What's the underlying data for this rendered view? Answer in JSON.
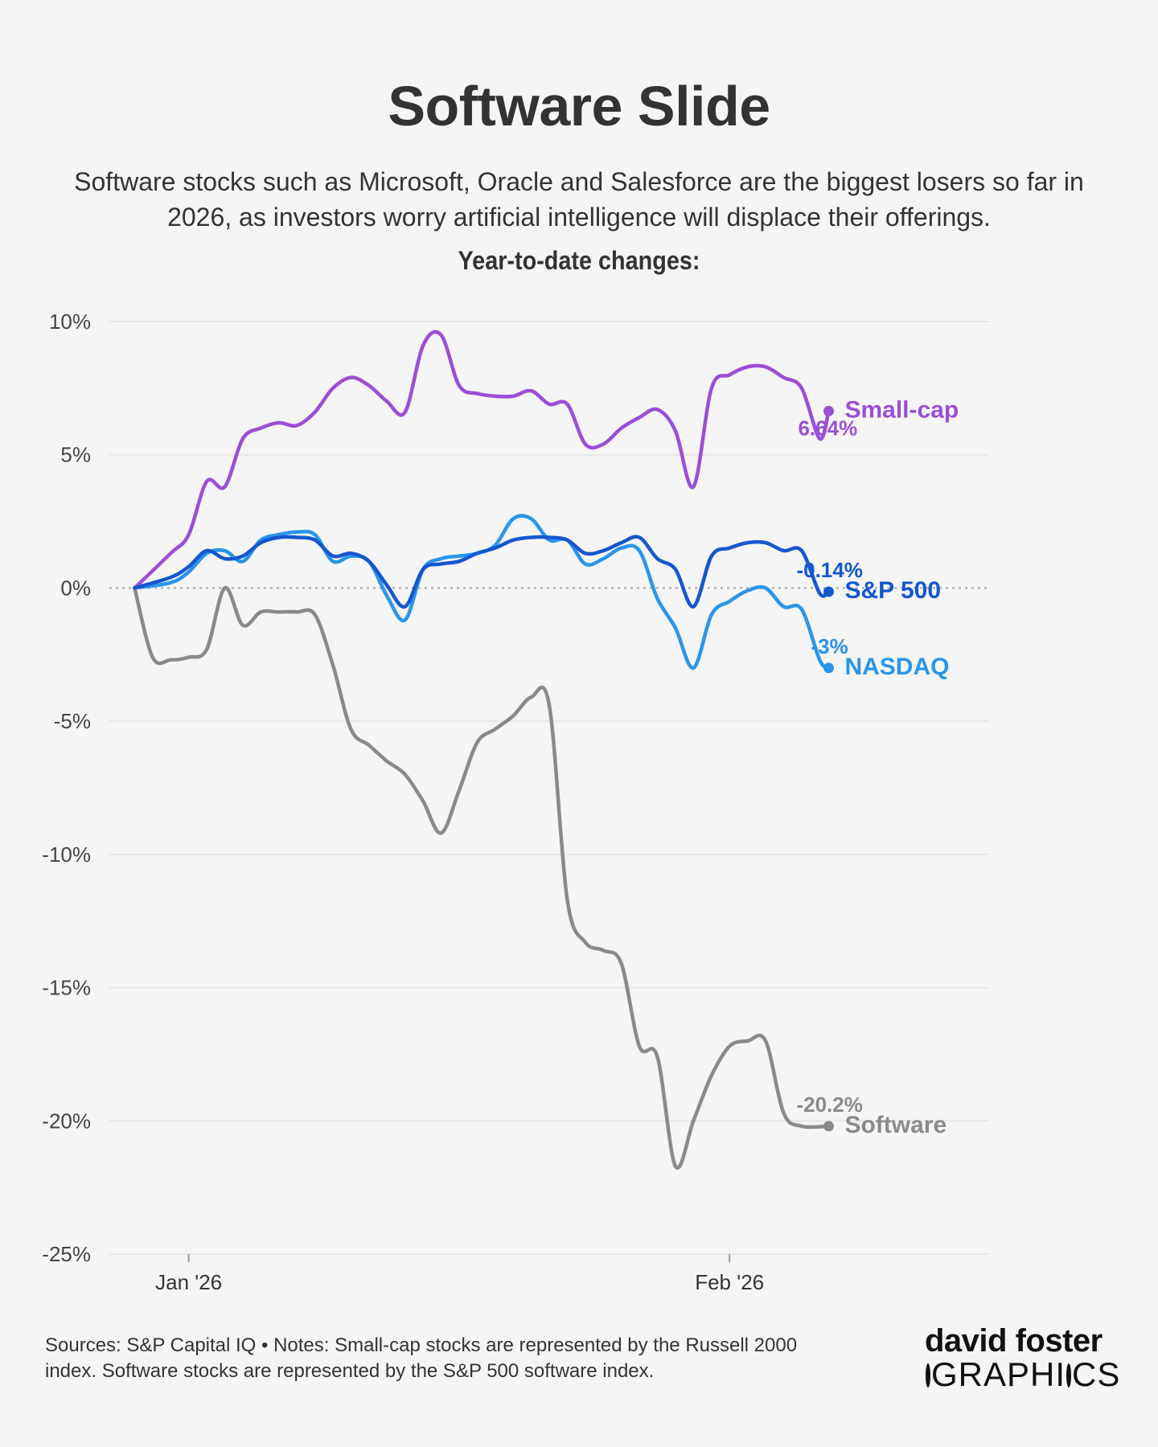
{
  "header": {
    "title": "Software Slide",
    "subtitle": "Software stocks such as Microsoft, Oracle and Salesforce are the biggest losers so far in 2026, as investors worry artificial intelligence will displace their offerings.",
    "chart_heading": "Year-to-date changes:"
  },
  "footer": {
    "sources": "Sources: S&P Capital IQ • Notes: Small-cap stocks are represented by the Russell 2000 index. Software stocks are represented by the S&P 500 software index.",
    "logo_top": "david foster",
    "logo_bottom_a": "GRAPH",
    "logo_bottom_b": "I",
    "logo_bottom_c": "CS"
  },
  "chart_data": {
    "type": "line",
    "title": "Year-to-date changes:",
    "xlabel": "",
    "ylabel": "",
    "xticks": [
      {
        "label": "Jan '26",
        "x": 3
      },
      {
        "label": "Feb '26",
        "x": 33
      }
    ],
    "xlim": [
      -1.4,
      47.4
    ],
    "ylim": [
      -25,
      10
    ],
    "yticks": [
      10,
      5,
      0,
      -5,
      -10,
      -15,
      -20,
      -25
    ],
    "ytick_labels": [
      "10%",
      "5%",
      "0%",
      "-5%",
      "-10%",
      "-15%",
      "-20%",
      "-25%"
    ],
    "grid": true,
    "zero_line": "dotted",
    "legend": "end-labels",
    "series": [
      {
        "name": "Small-cap",
        "end_label": "6.64%",
        "color": "#9a4fd6",
        "points": [
          [
            0,
            0
          ],
          [
            2,
            1.3
          ],
          [
            3,
            2.0
          ],
          [
            4,
            4.0
          ],
          [
            5,
            3.8
          ],
          [
            6,
            5.6
          ],
          [
            7,
            6.0
          ],
          [
            8,
            6.2
          ],
          [
            9,
            6.1
          ],
          [
            10,
            6.6
          ],
          [
            11,
            7.5
          ],
          [
            12,
            7.9
          ],
          [
            13,
            7.6
          ],
          [
            14,
            7.0
          ],
          [
            15,
            6.6
          ],
          [
            16,
            9.1
          ],
          [
            17,
            9.5
          ],
          [
            18,
            7.6
          ],
          [
            19,
            7.3
          ],
          [
            20,
            7.2
          ],
          [
            21,
            7.2
          ],
          [
            22,
            7.4
          ],
          [
            23,
            6.9
          ],
          [
            24,
            6.9
          ],
          [
            25,
            5.4
          ],
          [
            26,
            5.4
          ],
          [
            27,
            6.0
          ],
          [
            28,
            6.4
          ],
          [
            29,
            6.7
          ],
          [
            30,
            5.9
          ],
          [
            31,
            3.8
          ],
          [
            32,
            7.5
          ],
          [
            33,
            8.0
          ],
          [
            34,
            8.3
          ],
          [
            35,
            8.3
          ],
          [
            36,
            7.9
          ],
          [
            37,
            7.5
          ],
          [
            38,
            5.6
          ],
          [
            38.5,
            6.64
          ]
        ]
      },
      {
        "name": "S&P 500",
        "end_label": "-0.14%",
        "color": "#1457cf",
        "points": [
          [
            0,
            0
          ],
          [
            2,
            0.4
          ],
          [
            3,
            0.8
          ],
          [
            4,
            1.4
          ],
          [
            5,
            1.1
          ],
          [
            6,
            1.2
          ],
          [
            7,
            1.7
          ],
          [
            8,
            1.9
          ],
          [
            9,
            1.9
          ],
          [
            10,
            1.8
          ],
          [
            11,
            1.2
          ],
          [
            12,
            1.3
          ],
          [
            13,
            1.0
          ],
          [
            14,
            0.1
          ],
          [
            15,
            -0.7
          ],
          [
            16,
            0.7
          ],
          [
            17,
            0.9
          ],
          [
            18,
            1.0
          ],
          [
            19,
            1.3
          ],
          [
            20,
            1.5
          ],
          [
            21,
            1.8
          ],
          [
            22,
            1.9
          ],
          [
            23,
            1.9
          ],
          [
            24,
            1.8
          ],
          [
            25,
            1.3
          ],
          [
            26,
            1.4
          ],
          [
            27,
            1.7
          ],
          [
            28,
            1.9
          ],
          [
            29,
            1.1
          ],
          [
            30,
            0.7
          ],
          [
            31,
            -0.7
          ],
          [
            32,
            1.2
          ],
          [
            33,
            1.5
          ],
          [
            34,
            1.7
          ],
          [
            35,
            1.7
          ],
          [
            36,
            1.4
          ],
          [
            37,
            1.4
          ],
          [
            38,
            -0.2
          ],
          [
            38.5,
            -0.14
          ]
        ]
      },
      {
        "name": "NASDAQ",
        "end_label": "-3%",
        "color": "#2a95ea",
        "points": [
          [
            0,
            0
          ],
          [
            2,
            0.2
          ],
          [
            3,
            0.6
          ],
          [
            4,
            1.3
          ],
          [
            5,
            1.4
          ],
          [
            6,
            1.0
          ],
          [
            7,
            1.8
          ],
          [
            8,
            2.0
          ],
          [
            9,
            2.1
          ],
          [
            10,
            2.0
          ],
          [
            11,
            1.0
          ],
          [
            12,
            1.2
          ],
          [
            13,
            1.0
          ],
          [
            14,
            -0.3
          ],
          [
            15,
            -1.2
          ],
          [
            16,
            0.7
          ],
          [
            17,
            1.1
          ],
          [
            18,
            1.2
          ],
          [
            19,
            1.3
          ],
          [
            20,
            1.6
          ],
          [
            21,
            2.6
          ],
          [
            22,
            2.6
          ],
          [
            23,
            1.8
          ],
          [
            24,
            1.8
          ],
          [
            25,
            0.9
          ],
          [
            26,
            1.1
          ],
          [
            27,
            1.5
          ],
          [
            28,
            1.4
          ],
          [
            29,
            -0.4
          ],
          [
            30,
            -1.5
          ],
          [
            31,
            -3.0
          ],
          [
            32,
            -1.0
          ],
          [
            33,
            -0.5
          ],
          [
            34,
            -0.1
          ],
          [
            35,
            0.0
          ],
          [
            36,
            -0.7
          ],
          [
            37,
            -0.8
          ],
          [
            38,
            -2.7
          ],
          [
            38.5,
            -3.0
          ]
        ]
      },
      {
        "name": "Software",
        "end_label": "-20.2%",
        "color": "#8a8a8a",
        "points": [
          [
            0,
            0
          ],
          [
            1,
            -2.6
          ],
          [
            2,
            -2.7
          ],
          [
            3,
            -2.6
          ],
          [
            4,
            -2.3
          ],
          [
            5,
            0.0
          ],
          [
            6,
            -1.4
          ],
          [
            7,
            -0.9
          ],
          [
            8,
            -0.9
          ],
          [
            9,
            -0.9
          ],
          [
            10,
            -1.0
          ],
          [
            11,
            -2.9
          ],
          [
            12,
            -5.3
          ],
          [
            13,
            -5.9
          ],
          [
            14,
            -6.5
          ],
          [
            15,
            -7.0
          ],
          [
            16,
            -8.0
          ],
          [
            17,
            -9.2
          ],
          [
            18,
            -7.6
          ],
          [
            19,
            -5.8
          ],
          [
            20,
            -5.3
          ],
          [
            21,
            -4.8
          ],
          [
            22,
            -4.1
          ],
          [
            23,
            -4.4
          ],
          [
            24,
            -11.7
          ],
          [
            25,
            -13.3
          ],
          [
            26,
            -13.6
          ],
          [
            27,
            -14.1
          ],
          [
            28,
            -17.2
          ],
          [
            29,
            -17.6
          ],
          [
            30,
            -21.7
          ],
          [
            31,
            -20.0
          ],
          [
            32,
            -18.3
          ],
          [
            33,
            -17.2
          ],
          [
            34,
            -17.0
          ],
          [
            35,
            -17.0
          ],
          [
            36,
            -19.7
          ],
          [
            37,
            -20.2
          ],
          [
            38.5,
            -20.2
          ]
        ]
      }
    ]
  }
}
